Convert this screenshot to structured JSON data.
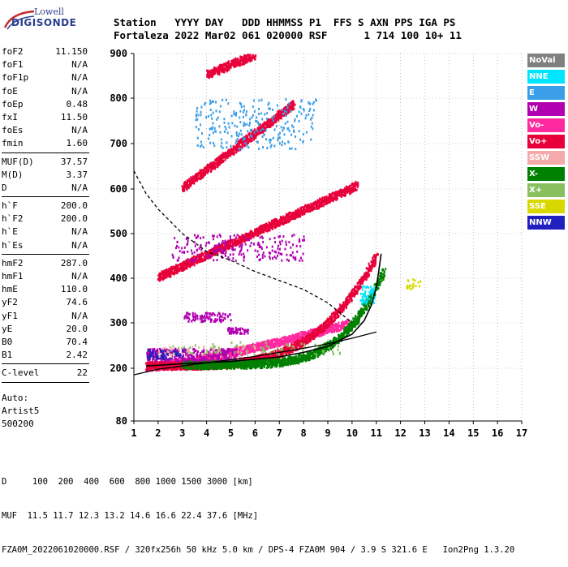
{
  "logo": {
    "line1": "Lowell",
    "line2": "DIGISONDE"
  },
  "header": {
    "labels": "Station   YYYY DAY   DDD HHMMSS P1  FFS S AXN PPS IGA PS",
    "values": "Fortaleza 2022 Mar02 061 020000 RSF      1 714 100 10+ 11"
  },
  "params": [
    {
      "name": "foF2",
      "value": "11.150"
    },
    {
      "name": "foF1",
      "value": "N/A"
    },
    {
      "name": "foF1p",
      "value": "N/A"
    },
    {
      "name": "foE",
      "value": "N/A"
    },
    {
      "name": "foEp",
      "value": "0.48"
    },
    {
      "name": "fxI",
      "value": "11.50"
    },
    {
      "name": "foEs",
      "value": "N/A"
    },
    {
      "name": "fmin",
      "value": "1.60"
    },
    {
      "sep": true
    },
    {
      "name": "MUF(D)",
      "value": "37.57"
    },
    {
      "name": "M(D)",
      "value": "3.37"
    },
    {
      "name": "D",
      "value": "N/A"
    },
    {
      "sep": true
    },
    {
      "name": "h`F",
      "value": "200.0"
    },
    {
      "name": "h`F2",
      "value": "200.0"
    },
    {
      "name": "h`E",
      "value": "N/A"
    },
    {
      "name": "h`Es",
      "value": "N/A"
    },
    {
      "sep": true
    },
    {
      "name": "hmF2",
      "value": "287.0"
    },
    {
      "name": "hmF1",
      "value": "N/A"
    },
    {
      "name": "hmE",
      "value": "110.0"
    },
    {
      "name": "yF2",
      "value": "74.6"
    },
    {
      "name": "yF1",
      "value": "N/A"
    },
    {
      "name": "yE",
      "value": "20.0"
    },
    {
      "name": "B0",
      "value": "70.4"
    },
    {
      "name": "B1",
      "value": "2.42"
    },
    {
      "sep": true
    },
    {
      "name": "C-level",
      "value": "22"
    },
    {
      "sep": true
    }
  ],
  "auto": {
    "l1": "Auto:",
    "l2": "Artist5",
    "l3": "500200"
  },
  "legend": [
    {
      "label": "NoVal",
      "bg": "#808080",
      "fg": "#ffffff"
    },
    {
      "label": "NNE",
      "bg": "#00e5ff",
      "fg": "#ffffff"
    },
    {
      "label": "E",
      "bg": "#3a9ee8",
      "fg": "#ffffff"
    },
    {
      "label": "W",
      "bg": "#b000b0",
      "fg": "#ffffff"
    },
    {
      "label": "Vo-",
      "bg": "#ff2aa0",
      "fg": "#ffffff"
    },
    {
      "label": "Vo+",
      "bg": "#e8003a",
      "fg": "#ffffff"
    },
    {
      "label": "SSW",
      "bg": "#f4aaaa",
      "fg": "#ffffff"
    },
    {
      "label": "X-",
      "bg": "#008000",
      "fg": "#ffffff"
    },
    {
      "label": "X+",
      "bg": "#88c060",
      "fg": "#ffffff"
    },
    {
      "label": "SSE",
      "bg": "#d8d800",
      "fg": "#ffffff"
    },
    {
      "label": "NNW",
      "bg": "#2020c0",
      "fg": "#ffffff"
    }
  ],
  "footer": {
    "d_row": "D     100  200  400  600  800 1000 1500 3000 [km]",
    "muf_row": "MUF  11.5 11.7 12.3 13.2 14.6 16.6 22.4 37.6 [MHz]",
    "info_row": "FZA0M_2022061020000.RSF / 320fx256h 50 kHz 5.0 km / DPS-4 FZA0M 904 / 3.9 S 321.6 E   Ion2Png 1.3.20"
  },
  "chart_data": {
    "type": "scatter",
    "title": "",
    "xlabel": "",
    "ylabel": "",
    "xlim": [
      1,
      17
    ],
    "ylim": [
      80,
      900
    ],
    "xticks": [
      "1",
      "2",
      "3",
      "4",
      "5",
      "6",
      "7",
      "8",
      "9",
      "10",
      "11",
      "12",
      "13",
      "14",
      "15",
      "16",
      "17"
    ],
    "yticks": [
      "80",
      "200",
      "300",
      "400",
      "500",
      "600",
      "700",
      "800",
      "900"
    ],
    "grid": "dotted",
    "legend_position": "right",
    "bands": [
      {
        "name": "Vo-",
        "color": "#ff2aa0",
        "x_start": 1.5,
        "x_end": 9.8,
        "h_start": 205,
        "h_end": 300,
        "curve": 1.3
      },
      {
        "name": "Vo+",
        "color": "#e8003a",
        "x_start": 1.5,
        "x_end": 11.0,
        "h_start": 208,
        "h_end": 455,
        "curve": 4.0
      },
      {
        "name": "X-",
        "color": "#008000",
        "x_start": 3.0,
        "x_end": 11.3,
        "h_start": 210,
        "h_end": 420,
        "curve": 5.0
      },
      {
        "name": "Vo+",
        "color": "#e8003a",
        "x_start": 2.0,
        "x_end": 10.2,
        "h_start": 405,
        "h_end": 610,
        "curve": 1.0
      },
      {
        "name": "Vo+",
        "color": "#e8003a",
        "x_start": 3.0,
        "x_end": 7.6,
        "h_start": 605,
        "h_end": 790,
        "curve": 1.0
      },
      {
        "name": "Vo+",
        "color": "#e8003a",
        "x_start": 4.0,
        "x_end": 6.0,
        "h_start": 855,
        "h_end": 900,
        "curve": 1.0
      }
    ],
    "clouds": [
      {
        "name": "W",
        "color": "#b000b0",
        "x_range": [
          1.5,
          5.2
        ],
        "h_range": [
          218,
          245
        ],
        "count": 340
      },
      {
        "name": "NNW",
        "color": "#2020c0",
        "x_range": [
          1.5,
          3.0
        ],
        "h_range": [
          222,
          242
        ],
        "count": 60
      },
      {
        "name": "W",
        "color": "#b000b0",
        "x_range": [
          3.0,
          5.0
        ],
        "h_range": [
          305,
          325
        ],
        "count": 90
      },
      {
        "name": "W",
        "color": "#b000b0",
        "x_range": [
          4.8,
          5.7
        ],
        "h_range": [
          278,
          292
        ],
        "count": 50
      },
      {
        "name": "W",
        "color": "#b000b0",
        "x_range": [
          2.5,
          8.0
        ],
        "h_range": [
          440,
          500
        ],
        "count": 220
      },
      {
        "name": "E",
        "color": "#3a9ee8",
        "x_range": [
          3.5,
          8.5
        ],
        "h_range": [
          690,
          800
        ],
        "count": 260
      },
      {
        "name": "NNE",
        "color": "#00e5ff",
        "x_range": [
          10.3,
          10.9
        ],
        "h_range": [
          345,
          385
        ],
        "count": 60
      },
      {
        "name": "SSE",
        "color": "#d8d800",
        "x_range": [
          12.2,
          12.8
        ],
        "h_range": [
          378,
          400
        ],
        "count": 20
      },
      {
        "name": "X+",
        "color": "#88c060",
        "x_range": [
          2.5,
          9.5
        ],
        "h_range": [
          232,
          260
        ],
        "count": 80
      },
      {
        "name": "SSW",
        "color": "#f4aaaa",
        "x_range": [
          1.8,
          6.0
        ],
        "h_range": [
          225,
          250
        ],
        "count": 40
      }
    ],
    "profile_lower": {
      "name": "profile-lower",
      "color": "#000000",
      "x": [
        1.0,
        2.0,
        3.0,
        4.0,
        5.0,
        6.0,
        7.0,
        8.0,
        9.0,
        10.0,
        10.5,
        11.0
      ],
      "h": [
        185,
        198,
        205,
        212,
        219,
        226,
        235,
        244,
        254,
        266,
        273,
        280
      ]
    },
    "profile_trace": {
      "name": "profile-trace",
      "color": "#000000",
      "x": [
        1.5,
        3.0,
        5.0,
        7.0,
        8.0,
        9.0,
        10.0,
        10.5,
        10.8,
        11.0,
        11.1,
        11.2
      ],
      "h": [
        205,
        210,
        215,
        225,
        235,
        248,
        275,
        305,
        340,
        380,
        415,
        455
      ]
    },
    "dashed_curve": {
      "name": "dashed-profile",
      "color": "#000000",
      "x": [
        1.0,
        1.5,
        2.0,
        3.0,
        4.0,
        5.0,
        6.0,
        7.0,
        8.0,
        9.0,
        10.0
      ],
      "h": [
        640,
        590,
        555,
        500,
        460,
        440,
        415,
        395,
        375,
        345,
        300
      ]
    }
  }
}
